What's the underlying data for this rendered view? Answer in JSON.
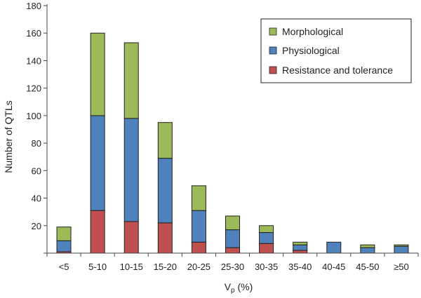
{
  "chart_data": {
    "type": "bar",
    "stacked": true,
    "categories": [
      "<5",
      "5-10",
      "10-15",
      "15-20",
      "20-25",
      "25-30",
      "30-35",
      "35-40",
      "40-45",
      "45-50",
      "≥50"
    ],
    "series": [
      {
        "name": "Resistance and tolerance",
        "color": "#c0504d",
        "values": [
          1,
          31,
          23,
          22,
          8,
          4,
          7,
          2,
          0,
          0,
          0
        ]
      },
      {
        "name": "Physiological",
        "color": "#4f81bd",
        "values": [
          8,
          69,
          75,
          47,
          23,
          13,
          8,
          4,
          8,
          4,
          5
        ]
      },
      {
        "name": "Morphological",
        "color": "#9bbb59",
        "values": [
          10,
          60,
          55,
          26,
          18,
          10,
          5,
          2,
          0,
          2,
          1
        ]
      }
    ],
    "legend_order": [
      "Morphological",
      "Physiological",
      "Resistance and tolerance"
    ],
    "legend_position": "top-right",
    "xlabel_main": "V",
    "xlabel_sub": "p",
    "xlabel_suffix": " (%)",
    "ylabel": "Number of QTLs",
    "ylim": [
      0,
      180
    ],
    "yticks": [
      "0",
      "20",
      "40",
      "60",
      "80",
      "100",
      "120",
      "140",
      "160",
      "180"
    ],
    "grid": false
  }
}
